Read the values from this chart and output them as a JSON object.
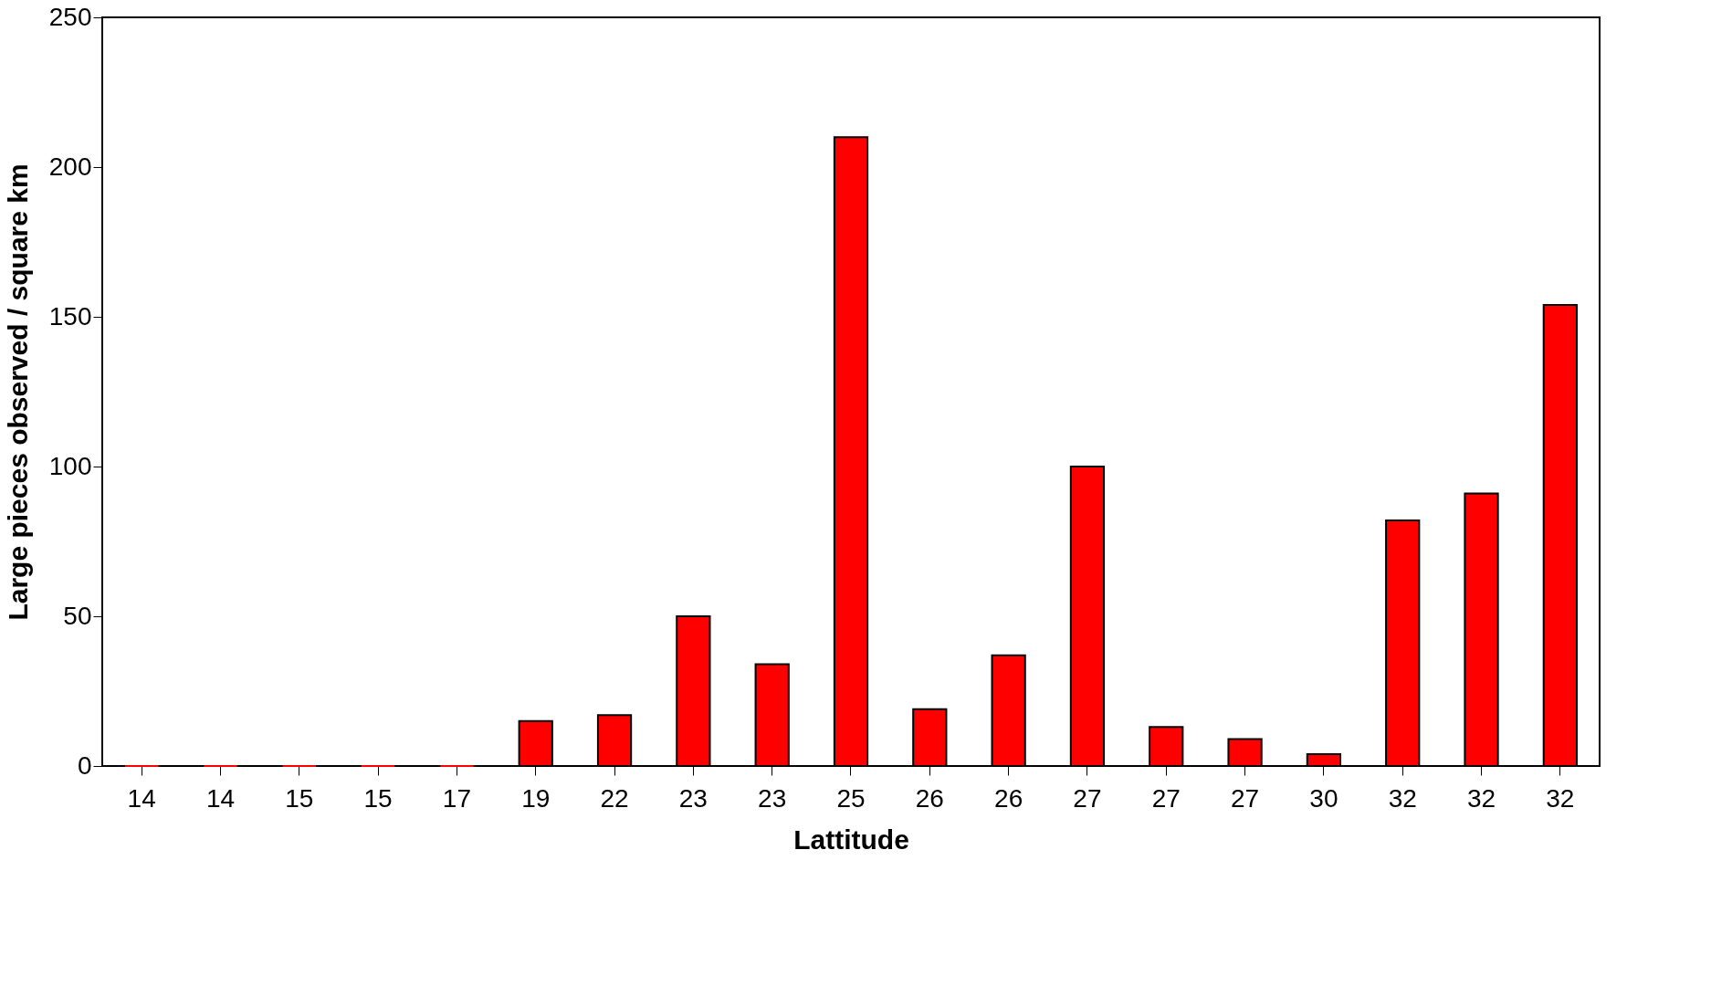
{
  "chart_data": {
    "type": "bar",
    "xlabel": "Lattitude",
    "ylabel": "Large pieces observed / square km",
    "categories": [
      "14",
      "14",
      "15",
      "15",
      "17",
      "19",
      "22",
      "23",
      "23",
      "25",
      "26",
      "26",
      "27",
      "27",
      "27",
      "30",
      "32",
      "32",
      "32"
    ],
    "values": [
      0,
      0,
      0,
      0,
      0,
      15,
      17,
      50,
      34,
      210,
      19,
      37,
      100,
      13,
      9,
      4,
      82,
      91,
      154
    ],
    "color": "#ff0000",
    "ylim": [
      0,
      250
    ],
    "yticks": [
      0,
      50,
      100,
      150,
      200,
      250
    ],
    "grid": false
  }
}
